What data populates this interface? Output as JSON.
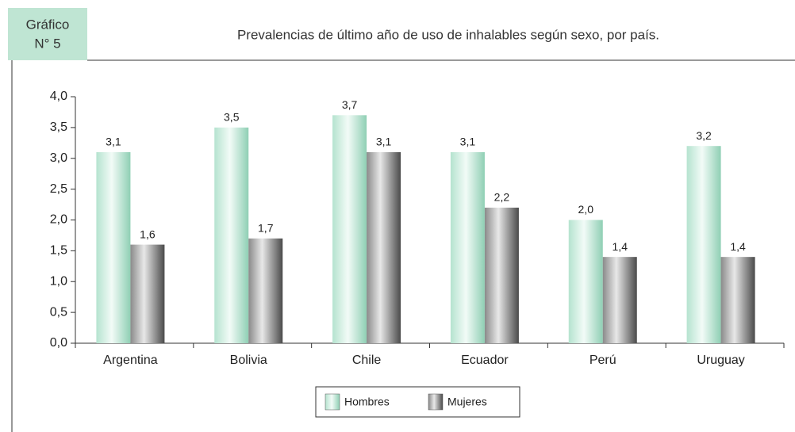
{
  "chart_data": {
    "type": "bar",
    "figure_label": [
      "Gráfico",
      "N° 5"
    ],
    "title": "Prevalencias de último año de uso de inhalables según sexo, por país.",
    "categories": [
      "Argentina",
      "Bolivia",
      "Chile",
      "Ecuador",
      "Perú",
      "Uruguay"
    ],
    "series": [
      {
        "name": "Hombres",
        "color": "#a8dcc6",
        "values": [
          3.1,
          3.5,
          3.7,
          3.1,
          2.0,
          3.2
        ],
        "value_labels": [
          "3,1",
          "3,5",
          "3,7",
          "3,1",
          "2,0",
          "3,2"
        ]
      },
      {
        "name": "Mujeres",
        "color": "#6e6e6e",
        "values": [
          1.6,
          1.7,
          3.1,
          2.2,
          1.4,
          1.4
        ],
        "value_labels": [
          "1,6",
          "1,7",
          "3,1",
          "2,2",
          "1,4",
          "1,4"
        ]
      }
    ],
    "ylim": [
      0,
      4
    ],
    "yticks": [
      {
        "value": 0,
        "label": "0,0"
      },
      {
        "value": 0.5,
        "label": "0,5"
      },
      {
        "value": 1,
        "label": "1,0"
      },
      {
        "value": 1.5,
        "label": "1,5"
      },
      {
        "value": 2,
        "label": "2,0"
      },
      {
        "value": 2.5,
        "label": "2,5"
      },
      {
        "value": 3,
        "label": "3,0"
      },
      {
        "value": 3.5,
        "label": "3,5"
      },
      {
        "value": 4,
        "label": "4,0"
      }
    ],
    "legend": "bottom"
  }
}
